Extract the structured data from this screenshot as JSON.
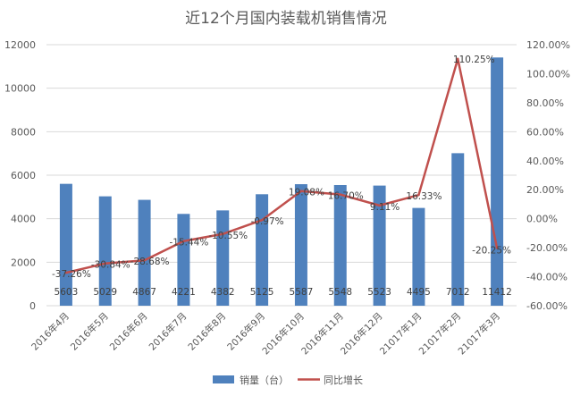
{
  "chart_data": {
    "type": "bar",
    "title": "近12个月国内装载机销售情况",
    "categories": [
      "2016年4月",
      "2016年5月",
      "2016年6月",
      "2016年7月",
      "2016年8月",
      "2016年9月",
      "2016年10月",
      "2016年11月",
      "2016年12月",
      "21017年1月",
      "21017年2月",
      "21017年3月"
    ],
    "series": [
      {
        "name": "销量（台）",
        "type": "bar",
        "axis": "left",
        "color": "#4f81bd",
        "values": [
          5603,
          5029,
          4867,
          4221,
          4382,
          5125,
          5587,
          5548,
          5523,
          4495,
          7012,
          11412
        ],
        "labels": [
          "5603",
          "5029",
          "4867",
          "4221",
          "4382",
          "5125",
          "5587",
          "5548",
          "5523",
          "4495",
          "7012",
          "11412"
        ]
      },
      {
        "name": "同比增长",
        "type": "line",
        "axis": "right",
        "color": "#c0504d",
        "values": [
          -37.26,
          -30.84,
          -28.68,
          -15.44,
          -10.55,
          -0.97,
          19.08,
          16.7,
          9.11,
          16.33,
          110.25,
          -20.25
        ],
        "labels": [
          "-37.26%",
          "-30.84%",
          "-28.68%",
          "-15.44%",
          "-10.55%",
          "-0.97%",
          "19.08%",
          "16.70%",
          "9.11%",
          "16.33%",
          "110.25%",
          "-20.25%"
        ]
      }
    ],
    "y_left": {
      "min": 0,
      "max": 12000,
      "step": 2000,
      "ticks": [
        "0",
        "2000",
        "4000",
        "6000",
        "8000",
        "10000",
        "12000"
      ]
    },
    "y_right": {
      "min": -60,
      "max": 120,
      "step": 20,
      "ticks": [
        "-60.00%",
        "-40.00%",
        "-20.00%",
        "0.00%",
        "20.00%",
        "40.00%",
        "60.00%",
        "80.00%",
        "100.00%",
        "120.00%"
      ]
    },
    "grid": true,
    "legend_position": "bottom"
  }
}
